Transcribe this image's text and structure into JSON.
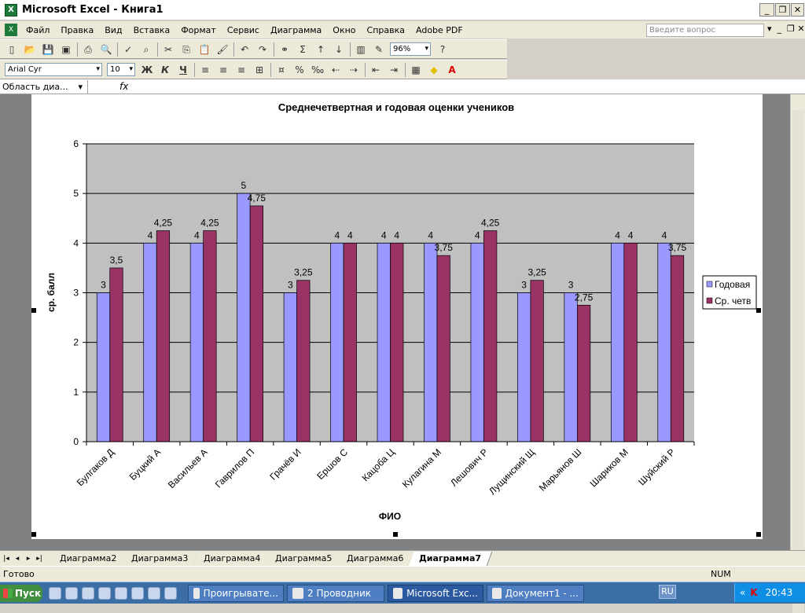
{
  "app": {
    "title": "Microsoft Excel - Книга1"
  },
  "menu": {
    "items": [
      "Файл",
      "Правка",
      "Вид",
      "Вставка",
      "Формат",
      "Сервис",
      "Диаграмма",
      "Окно",
      "Справка",
      "Adobe PDF"
    ],
    "help_placeholder": "Введите вопрос"
  },
  "toolbar": {
    "zoom": "96%",
    "font": "Arial Cyr",
    "size": "10",
    "bold": "Ж",
    "italic": "К",
    "underline": "Ч"
  },
  "formula": {
    "name_box": "Область диа...",
    "fx": "fx"
  },
  "chart_data": {
    "type": "bar",
    "title": "Среднечетвертная и годовая оценки учеников",
    "xlabel": "ФИО",
    "ylabel": "ср. балл",
    "ylim": [
      0,
      6
    ],
    "yticks": [
      "0",
      "1",
      "2",
      "3",
      "4",
      "5",
      "6"
    ],
    "grid": true,
    "legend": "right",
    "categories": [
      "Булгаков Д",
      "Буцкий А",
      "Васильев А",
      "Гаврилов П",
      "Грачёв И",
      "Ершов С",
      "Кацоба Ц",
      "Кулагина М",
      "Лешович Р",
      "Лущинский Щ",
      "Марьянов Ш",
      "Шариков М",
      "Шуйский Р"
    ],
    "series": [
      {
        "name": "Годовая",
        "color": "#9999ff",
        "values": [
          3,
          4,
          4,
          5,
          3,
          4,
          4,
          4,
          4,
          3,
          3,
          4,
          4
        ],
        "labels": [
          "3",
          "4",
          "4",
          "5",
          "3",
          "4",
          "4",
          "4",
          "4",
          "3",
          "3",
          "4",
          "4"
        ]
      },
      {
        "name": "Ср. четв",
        "color": "#993366",
        "values": [
          3.5,
          4.25,
          4.25,
          4.75,
          3.25,
          4,
          4,
          3.75,
          4.25,
          3.25,
          2.75,
          4,
          3.75
        ],
        "labels": [
          "3,5",
          "4,25",
          "4,25",
          "4,75",
          "3,25",
          "4",
          "4",
          "3,75",
          "4,25",
          "3,25",
          "2,75",
          "4",
          "3,75"
        ]
      }
    ]
  },
  "tabs": {
    "items": [
      "Диаграмма2",
      "Диаграмма3",
      "Диаграмма4",
      "Диаграмма5",
      "Диаграмма6",
      "Диаграмма7"
    ],
    "active": "Диаграмма7"
  },
  "status": {
    "left": "Готово",
    "num": "NUM"
  },
  "taskbar": {
    "start": "Пуск",
    "tasks": [
      "Проигрывате...",
      "2 Проводник",
      "Microsoft Exc...",
      "Документ1 - ..."
    ],
    "lang": "RU",
    "clock": "20:43"
  }
}
